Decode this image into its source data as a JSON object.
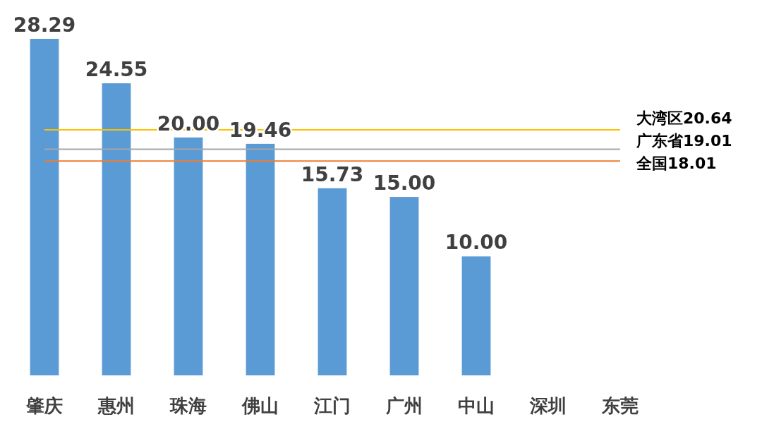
{
  "chart_data": {
    "type": "bar",
    "categories": [
      "肇庆",
      "惠州",
      "珠海",
      "佛山",
      "江门",
      "广州",
      "中山",
      "深圳",
      "东莞"
    ],
    "values": [
      28.29,
      24.55,
      20.0,
      19.46,
      15.73,
      15.0,
      10.0,
      null,
      null
    ],
    "value_labels": [
      "28.29",
      "24.55",
      "20.00",
      "19.46",
      "15.73",
      "15.00",
      "10.00",
      null,
      null
    ],
    "color": "#5b9bd5",
    "ref_lines": [
      {
        "axis": "y",
        "value": 20.64,
        "label": "大湾区20.64",
        "color": "#ffc000"
      },
      {
        "axis": "y",
        "value": 19.01,
        "label": "广东省19.01",
        "color": "#a5a5a5"
      },
      {
        "axis": "y",
        "value": 18.01,
        "label": "全国18.01",
        "color": "#ed7d31"
      }
    ]
  }
}
